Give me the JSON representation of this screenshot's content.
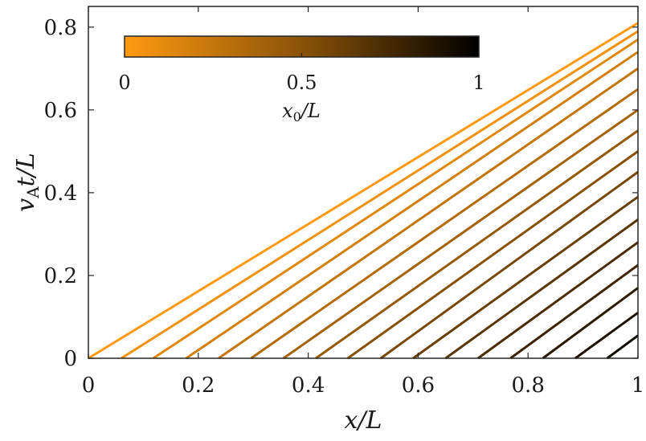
{
  "chart_data": {
    "type": "line",
    "xlabel": "x/L",
    "ylabel": "v_A t/L",
    "xlim": [
      0,
      1
    ],
    "ylim": [
      0,
      0.85
    ],
    "xticks": [
      "0",
      "0.2",
      "0.4",
      "0.6",
      "0.8",
      "1"
    ],
    "yticks": [
      "0",
      "0.2",
      "0.4",
      "0.6",
      "0.8"
    ],
    "grid": false,
    "description": "Family of straight characteristic lines t = (x - x0)/v_A, colored by x0/L",
    "series": [
      {
        "x0": 0.0,
        "x": [
          0.0,
          1.0
        ],
        "y": [
          0.0,
          0.81
        ]
      },
      {
        "x0": 0.06,
        "x": [
          0.06,
          1.0
        ],
        "y": [
          0.0,
          0.79
        ]
      },
      {
        "x0": 0.118,
        "x": [
          0.118,
          1.0
        ],
        "y": [
          0.0,
          0.77
        ]
      },
      {
        "x0": 0.178,
        "x": [
          0.178,
          1.0
        ],
        "y": [
          0.0,
          0.74
        ]
      },
      {
        "x0": 0.237,
        "x": [
          0.237,
          1.0
        ],
        "y": [
          0.0,
          0.7
        ]
      },
      {
        "x0": 0.296,
        "x": [
          0.296,
          1.0
        ],
        "y": [
          0.0,
          0.65
        ]
      },
      {
        "x0": 0.355,
        "x": [
          0.355,
          1.0
        ],
        "y": [
          0.0,
          0.6
        ]
      },
      {
        "x0": 0.414,
        "x": [
          0.414,
          1.0
        ],
        "y": [
          0.0,
          0.55
        ]
      },
      {
        "x0": 0.472,
        "x": [
          0.472,
          1.0
        ],
        "y": [
          0.0,
          0.5
        ]
      },
      {
        "x0": 0.532,
        "x": [
          0.532,
          1.0
        ],
        "y": [
          0.0,
          0.45
        ]
      },
      {
        "x0": 0.591,
        "x": [
          0.591,
          1.0
        ],
        "y": [
          0.0,
          0.39
        ]
      },
      {
        "x0": 0.65,
        "x": [
          0.65,
          1.0
        ],
        "y": [
          0.0,
          0.335
        ]
      },
      {
        "x0": 0.709,
        "x": [
          0.709,
          1.0
        ],
        "y": [
          0.0,
          0.28
        ]
      },
      {
        "x0": 0.768,
        "x": [
          0.768,
          1.0
        ],
        "y": [
          0.0,
          0.225
        ]
      },
      {
        "x0": 0.827,
        "x": [
          0.827,
          1.0
        ],
        "y": [
          0.0,
          0.17
        ]
      },
      {
        "x0": 0.886,
        "x": [
          0.886,
          1.0
        ],
        "y": [
          0.0,
          0.11
        ]
      },
      {
        "x0": 0.944,
        "x": [
          0.944,
          1.0
        ],
        "y": [
          0.0,
          0.055
        ]
      }
    ],
    "colorbar": {
      "label": "x_0/L",
      "ticks": [
        "0",
        "0.5",
        "1"
      ],
      "range": [
        0,
        1
      ],
      "color_start": "#ff9a10",
      "color_end": "#000000",
      "placement": "inset top-left, horizontal"
    }
  }
}
